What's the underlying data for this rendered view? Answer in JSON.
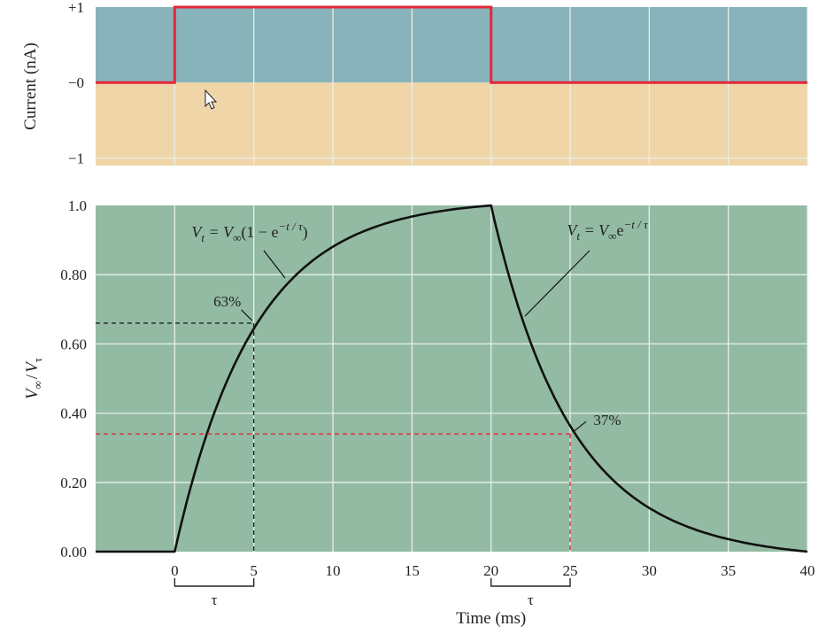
{
  "colors": {
    "current_positive_bg": "#88b3bb",
    "current_negative_bg": "#efd5a8",
    "voltage_bg": "#93bba3",
    "grid": "#e6efe9",
    "stimulus_line": "#e2273a",
    "voltage_line": "#111111",
    "marker_63": "#222222",
    "marker_37": "#e2273a"
  },
  "chart_data": [
    {
      "type": "line",
      "ylabel": "Current (nA)",
      "yticks": [
        "+1",
        "−0",
        "−1"
      ],
      "ylim": [
        -1.1,
        1.0
      ],
      "xlim": [
        -5,
        40
      ],
      "grid": true,
      "series": [
        {
          "x": [
            -5,
            0,
            0,
            20,
            20,
            40
          ],
          "y": [
            0,
            0,
            1,
            1,
            0,
            0
          ]
        }
      ]
    },
    {
      "type": "line",
      "ylabel_main": "V",
      "ylabel_sub_main": "∞",
      "ylabel_slash": "/",
      "ylabel_denominator": "V",
      "ylabel_sub_denominator": "τ",
      "xlabel": "Time (ms)",
      "xticks": [
        "0",
        "5",
        "10",
        "15",
        "20",
        "25",
        "30",
        "35",
        "40"
      ],
      "xtick_values": [
        0,
        5,
        10,
        15,
        20,
        25,
        30,
        35,
        40
      ],
      "yticks": [
        "1.0",
        "0.80",
        "0.60",
        "0.40",
        "0.20",
        "0.00"
      ],
      "ytick_values": [
        1.0,
        0.8,
        0.6,
        0.4,
        0.2,
        0.0
      ],
      "xlim": [
        -5,
        40
      ],
      "ylim": [
        0,
        1.0
      ],
      "grid": true,
      "time_constant_ms": 5,
      "stimulus_off_ms": 20,
      "rise_equation": "V_t = V_∞(1 − e^{−t/τ})",
      "decay_equation": "V_t = V_∞ e^{−t/τ}",
      "annotations": {
        "rise_percent": "63%",
        "rise_point": {
          "x": 5,
          "y": 0.66
        },
        "decay_percent": "37%",
        "decay_point": {
          "x": 25,
          "y": 0.34
        },
        "tau_label": "τ",
        "tau_brackets": [
          {
            "from": 0,
            "to": 5
          },
          {
            "from": 20,
            "to": 25
          }
        ]
      }
    }
  ]
}
